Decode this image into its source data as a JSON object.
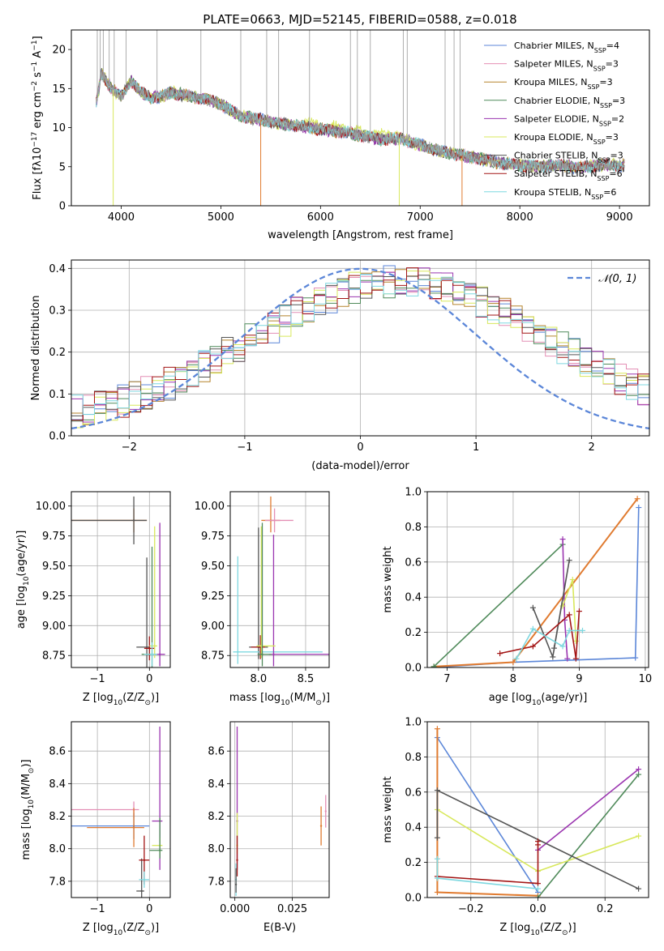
{
  "figure_title": "PLATE=0663, MJD=52145, FIBERID=0588, z=0.018",
  "colors": {
    "Chabrier MILES": "#5b86d8",
    "Salpeter MILES": "#e48fb5",
    "Kroupa MILES": "#b5832c",
    "Chabrier ELODIE": "#4f8a5a",
    "Salpeter ELODIE": "#9b36b0",
    "Kroupa ELODIE": "#d8e85c",
    "Chabrier STELIB": "#555555",
    "Salpeter STELIB": "#a31515",
    "Kroupa STELIB": "#7fd8e0",
    "orange": "#e07b30",
    "data": "#999999"
  },
  "chart_data": [
    {
      "id": "spectrum",
      "type": "line",
      "title": "PLATE=0663, MJD=52145, FIBERID=0588, z=0.018",
      "xlabel": "wavelength [Angstrom, rest frame]",
      "ylabel_parts": [
        "Flux [f",
        "λ",
        "10",
        "−17",
        " erg cm",
        "−2",
        " s",
        "−1",
        " A",
        "−1",
        "]"
      ],
      "xlim": [
        3500,
        9300
      ],
      "ylim": [
        0,
        22.5
      ],
      "xticks": [
        4000,
        5000,
        6000,
        7000,
        8000,
        9000
      ],
      "yticks": [
        0,
        5,
        10,
        15,
        20
      ],
      "legend_position": "top-right",
      "legend": [
        {
          "label": "Chabrier MILES, N",
          "sub": "SSP",
          "suffix": "=4",
          "color": "#5b86d8"
        },
        {
          "label": "Salpeter MILES, N",
          "sub": "SSP",
          "suffix": "=3",
          "color": "#e48fb5"
        },
        {
          "label": "Kroupa MILES, N",
          "sub": "SSP",
          "suffix": "=3",
          "color": "#b5832c"
        },
        {
          "label": "Chabrier ELODIE, N",
          "sub": "SSP",
          "suffix": "=3",
          "color": "#4f8a5a"
        },
        {
          "label": "Salpeter ELODIE, N",
          "sub": "SSP",
          "suffix": "=2",
          "color": "#9b36b0"
        },
        {
          "label": "Kroupa ELODIE, N",
          "sub": "SSP",
          "suffix": "=3",
          "color": "#d8e85c"
        },
        {
          "label": "Chabrier STELIB, N",
          "sub": "SSP",
          "suffix": "=3",
          "color": "#555555"
        },
        {
          "label": "Salpeter STELIB, N",
          "sub": "SSP",
          "suffix": "=6",
          "color": "#a31515"
        },
        {
          "label": "Kroupa STELIB, N",
          "sub": "SSP",
          "suffix": "=6",
          "color": "#7fd8e0"
        }
      ],
      "continuum": [
        [
          3750,
          13
        ],
        [
          3800,
          17
        ],
        [
          3900,
          15
        ],
        [
          4000,
          14
        ],
        [
          4100,
          16
        ],
        [
          4200,
          14.5
        ],
        [
          4300,
          13.8
        ],
        [
          4400,
          14
        ],
        [
          4500,
          14.5
        ],
        [
          4700,
          14
        ],
        [
          4900,
          13.5
        ],
        [
          5000,
          13
        ],
        [
          5200,
          11.5
        ],
        [
          5400,
          11
        ],
        [
          5600,
          10.5
        ],
        [
          5800,
          10.2
        ],
        [
          6000,
          9.8
        ],
        [
          6200,
          9.5
        ],
        [
          6400,
          9
        ],
        [
          6600,
          8.5
        ],
        [
          6800,
          8.6
        ],
        [
          7000,
          7.8
        ],
        [
          7200,
          7
        ],
        [
          7400,
          6.5
        ],
        [
          7600,
          6
        ],
        [
          7800,
          5.5
        ],
        [
          8000,
          5.2
        ],
        [
          8200,
          5
        ],
        [
          8400,
          5.2
        ],
        [
          8600,
          4.9
        ],
        [
          8800,
          5.2
        ],
        [
          9000,
          5.2
        ]
      ],
      "sky_spikes": [
        3760,
        3790,
        3820,
        3880,
        3930,
        4050,
        4360,
        4800,
        5200,
        5460,
        5580,
        5890,
        6300,
        6370,
        6500,
        6830,
        6870,
        7250,
        7340,
        7400
      ]
    },
    {
      "id": "residuals",
      "type": "line",
      "xlabel": "(data-model)/error",
      "ylabel": "Normed distribution",
      "xlim": [
        -2.5,
        2.5
      ],
      "ylim": [
        0,
        0.42
      ],
      "xticks": [
        -2,
        -1,
        0,
        1,
        2
      ],
      "yticks": [
        0.0,
        0.1,
        0.2,
        0.3,
        0.4
      ],
      "legend_position": "top-right",
      "legend": [
        {
          "label": "𝒩(0, 1)",
          "color": "#5b86d8"
        }
      ],
      "gaussian_mu": 0,
      "gaussian_sigma": 1,
      "hist_bins": 50
    },
    {
      "id": "age-vs-Z",
      "type": "scatter",
      "xlabel_parts": [
        "Z [log",
        "10",
        "(Z/Z",
        "⊙",
        ")]"
      ],
      "ylabel_parts": [
        "age  [log",
        "10",
        "(age/yr)]"
      ],
      "xlim": [
        -1.5,
        0.4
      ],
      "ylim": [
        8.65,
        10.12
      ],
      "xticks": [
        -1,
        0
      ],
      "yticks": [
        8.75,
        9.0,
        9.25,
        9.5,
        9.75,
        10.0
      ],
      "points": [
        {
          "x": -0.3,
          "y": 9.88,
          "xerr": [
            1.4,
            0.25
          ],
          "yerr": [
            0.1,
            0.1
          ],
          "color": "#e07b30"
        },
        {
          "x": -0.3,
          "y": 9.88,
          "xerr": [
            1.4,
            0.25
          ],
          "yerr": [
            0.2,
            0.2
          ],
          "color": "#555555"
        },
        {
          "x": -0.05,
          "y": 8.82,
          "xerr": [
            0.2,
            0.05
          ],
          "yerr": [
            0.75,
            0.75
          ],
          "color": "#555555"
        },
        {
          "x": 0.05,
          "y": 8.76,
          "xerr": [
            0.2,
            0.1
          ],
          "yerr": [
            0.9,
            0.9
          ],
          "color": "#4f8a5a"
        },
        {
          "x": 0.0,
          "y": 8.81,
          "xerr": [
            0.1,
            0.1
          ],
          "yerr": [
            0.1,
            0.1
          ],
          "color": "#a31515"
        },
        {
          "x": 0.2,
          "y": 8.76,
          "xerr": [
            0.1,
            0.1
          ],
          "yerr": [
            0.1,
            1.1
          ],
          "color": "#9b36b0"
        },
        {
          "x": 0.1,
          "y": 8.83,
          "xerr": [
            0.1,
            0.05
          ],
          "yerr": [
            0.1,
            1.0
          ],
          "color": "#d8e85c"
        },
        {
          "x": 0.05,
          "y": 8.76,
          "xerr": [
            0.15,
            0.1
          ],
          "yerr": [
            0.1,
            0.1
          ],
          "color": "#7fd8e0"
        }
      ]
    },
    {
      "id": "age-vs-mass",
      "type": "scatter",
      "xlabel_parts": [
        "mass [log",
        "10",
        "(M/M",
        "⊙",
        ")]"
      ],
      "xlim": [
        7.7,
        8.75
      ],
      "ylim": [
        8.65,
        10.12
      ],
      "xticks": [
        8.0,
        8.5
      ],
      "yticks": [
        8.75,
        9.0,
        9.25,
        9.5,
        9.75,
        10.0
      ],
      "points": [
        {
          "x": 8.13,
          "y": 9.88,
          "xerr": [
            0.1,
            0.1
          ],
          "yerr": [
            0.1,
            0.2
          ],
          "color": "#e07b30"
        },
        {
          "x": 8.17,
          "y": 9.88,
          "xerr": [
            0.1,
            0.2
          ],
          "yerr": [
            0.1,
            0.1
          ],
          "color": "#e48fb5"
        },
        {
          "x": 8.0,
          "y": 8.82,
          "xerr": [
            0.1,
            0.1
          ],
          "yerr": [
            0.1,
            1.0
          ],
          "color": "#555555"
        },
        {
          "x": 7.78,
          "y": 8.78,
          "xerr": [
            0.05,
            0.9
          ],
          "yerr": [
            0.1,
            0.8
          ],
          "color": "#7fd8e0"
        },
        {
          "x": 8.02,
          "y": 8.82,
          "xerr": [
            0.1,
            0.05
          ],
          "yerr": [
            0.1,
            0.1
          ],
          "color": "#a31515"
        },
        {
          "x": 8.16,
          "y": 8.76,
          "xerr": [
            0.05,
            0.6
          ],
          "yerr": [
            0.1,
            1.0
          ],
          "color": "#9b36b0"
        },
        {
          "x": 8.03,
          "y": 8.83,
          "xerr": [
            0.05,
            0.15
          ],
          "yerr": [
            0.1,
            1.0
          ],
          "color": "#d8e85c"
        },
        {
          "x": 8.04,
          "y": 8.76,
          "xerr": [
            0.05,
            0.1
          ],
          "yerr": [
            0.1,
            1.1
          ],
          "color": "#4f8a5a"
        }
      ]
    },
    {
      "id": "weight-vs-age",
      "type": "line",
      "xlabel_parts": [
        "age  [log",
        "10",
        "(age/yr)]"
      ],
      "ylabel": "mass weight",
      "xlim": [
        6.7,
        10.05
      ],
      "ylim": [
        0,
        1.0
      ],
      "xticks": [
        7,
        8,
        9,
        10
      ],
      "yticks": [
        0.0,
        0.2,
        0.4,
        0.6,
        0.8,
        1.0
      ],
      "series": [
        {
          "color": "#5b86d8",
          "x": [
            6.8,
            8.0,
            9.85,
            9.9
          ],
          "y": [
            0.0,
            0.03,
            0.055,
            0.91
          ]
        },
        {
          "color": "#e07b30",
          "x": [
            6.8,
            8.0,
            9.88
          ],
          "y": [
            0.005,
            0.03,
            0.96
          ]
        },
        {
          "color": "#4f8a5a",
          "x": [
            6.8,
            8.75
          ],
          "y": [
            0.005,
            0.7
          ]
        },
        {
          "color": "#9b36b0",
          "x": [
            8.75,
            8.78,
            8.82
          ],
          "y": [
            0.73,
            0.27,
            0.05
          ]
        },
        {
          "color": "#d8e85c",
          "x": [
            8.75,
            8.9,
            8.95
          ],
          "y": [
            0.35,
            0.5,
            0.15
          ]
        },
        {
          "color": "#555555",
          "x": [
            8.3,
            8.6,
            8.85,
            8.62
          ],
          "y": [
            0.34,
            0.06,
            0.61,
            0.11
          ]
        },
        {
          "color": "#a31515",
          "x": [
            7.8,
            8.3,
            8.85,
            8.95,
            9.0
          ],
          "y": [
            0.08,
            0.12,
            0.3,
            0.05,
            0.32
          ]
        },
        {
          "color": "#7fd8e0",
          "x": [
            8.05,
            8.3,
            8.75,
            8.85,
            9.05
          ],
          "y": [
            0.05,
            0.22,
            0.12,
            0.21,
            0.21
          ]
        }
      ]
    },
    {
      "id": "mass-vs-Z",
      "type": "scatter",
      "xlabel_parts": [
        "Z [log",
        "10",
        "(Z/Z",
        "⊙",
        ")]"
      ],
      "ylabel_parts": [
        "mass [log",
        "10",
        "(M/M",
        "⊙",
        ")]"
      ],
      "xlim": [
        -1.5,
        0.4
      ],
      "ylim": [
        7.7,
        8.78
      ],
      "xticks": [
        -1,
        0
      ],
      "yticks": [
        7.8,
        8.0,
        8.2,
        8.4,
        8.6
      ],
      "points": [
        {
          "x": -0.3,
          "y": 8.24,
          "xerr": [
            1.4,
            0.1
          ],
          "yerr": [
            0.05,
            0.05
          ],
          "color": "#e48fb5"
        },
        {
          "x": -0.3,
          "y": 8.14,
          "xerr": [
            1.4,
            0.3
          ],
          "yerr": [
            0.08,
            0.08
          ],
          "color": "#5b86d8"
        },
        {
          "x": -0.3,
          "y": 8.13,
          "xerr": [
            0.9,
            0.2
          ],
          "yerr": [
            0.12,
            0.12
          ],
          "color": "#e07b30"
        },
        {
          "x": -0.15,
          "y": 7.74,
          "xerr": [
            0.1,
            0.05
          ],
          "yerr": [
            0.2,
            0.2
          ],
          "color": "#555555"
        },
        {
          "x": -0.1,
          "y": 7.93,
          "xerr": [
            0.1,
            0.1
          ],
          "yerr": [
            0.15,
            0.15
          ],
          "color": "#a31515"
        },
        {
          "x": -0.1,
          "y": 7.81,
          "xerr": [
            0.1,
            0.1
          ],
          "yerr": [
            0.05,
            0.05
          ],
          "color": "#7fd8e0"
        },
        {
          "x": 0.2,
          "y": 8.17,
          "xerr": [
            0.15,
            0.05
          ],
          "yerr": [
            0.3,
            0.58
          ],
          "color": "#9b36b0"
        },
        {
          "x": 0.2,
          "y": 8.02,
          "xerr": [
            0.15,
            0.05
          ],
          "yerr": [
            0.05,
            0.05
          ],
          "color": "#d8e85c"
        },
        {
          "x": 0.2,
          "y": 7.99,
          "xerr": [
            0.2,
            0.05
          ],
          "yerr": [
            0.05,
            0.2
          ],
          "color": "#4f8a5a"
        }
      ]
    },
    {
      "id": "mass-vs-ebv",
      "type": "scatter",
      "xlabel": "E(B-V)",
      "xlim": [
        -0.002,
        0.041
      ],
      "ylim": [
        7.7,
        8.78
      ],
      "xticks": [
        0.0,
        0.025
      ],
      "xtick_labels": [
        "0.000",
        "0.025"
      ],
      "yticks": [
        7.8,
        8.0,
        8.2,
        8.4,
        8.6
      ],
      "points": [
        {
          "x": 0.001,
          "y": 8.17,
          "yerr": [
            0.3,
            0.58
          ],
          "color": "#9b36b0"
        },
        {
          "x": 0.001,
          "y": 8.02,
          "yerr": [
            0.05,
            0.2
          ],
          "color": "#d8e85c"
        },
        {
          "x": 0.001,
          "y": 7.93,
          "yerr": [
            0.1,
            0.15
          ],
          "color": "#a31515"
        },
        {
          "x": 0.0005,
          "y": 7.81,
          "yerr": [
            0.1,
            0.1
          ],
          "color": "#7fd8e0"
        },
        {
          "x": 0.0005,
          "y": 7.78,
          "yerr": [
            0.05,
            0.1
          ],
          "color": "#555555"
        },
        {
          "x": 0.0375,
          "y": 8.14,
          "yerr": [
            0.12,
            0.12
          ],
          "color": "#e07b30"
        },
        {
          "x": 0.0395,
          "y": 8.23,
          "yerr": [
            0.1,
            0.1
          ],
          "color": "#e48fb5"
        }
      ]
    },
    {
      "id": "weight-vs-Z",
      "type": "line",
      "xlabel_parts": [
        "Z [log",
        "10",
        "(Z/Z",
        "⊙",
        ")]"
      ],
      "ylabel": "mass weight",
      "xlim": [
        -0.33,
        0.33
      ],
      "ylim": [
        0,
        1.0
      ],
      "xticks": [
        -0.2,
        0.0,
        0.2
      ],
      "xtick_labels": [
        "−0.2",
        "0.0",
        "0.2"
      ],
      "yticks": [
        0.0,
        0.2,
        0.4,
        0.6,
        0.8,
        1.0
      ],
      "series": [
        {
          "color": "#5b86d8",
          "x": [
            -0.3,
            0.0
          ],
          "y": [
            0.91,
            0.03
          ]
        },
        {
          "color": "#e07b30",
          "x": [
            -0.3,
            -0.3,
            0.0
          ],
          "y": [
            0.96,
            0.03,
            0.01
          ]
        },
        {
          "color": "#4f8a5a",
          "x": [
            0.0,
            0.3
          ],
          "y": [
            0.0,
            0.7
          ]
        },
        {
          "color": "#9b36b0",
          "x": [
            0.0,
            0.3
          ],
          "y": [
            0.27,
            0.73
          ]
        },
        {
          "color": "#d8e85c",
          "x": [
            -0.3,
            0.0,
            0.3
          ],
          "y": [
            0.5,
            0.15,
            0.35
          ]
        },
        {
          "color": "#555555",
          "x": [
            -0.3,
            -0.3,
            0.3
          ],
          "y": [
            0.34,
            0.61,
            0.05
          ]
        },
        {
          "color": "#a31515",
          "x": [
            -0.3,
            0.0,
            0.0,
            0.0
          ],
          "y": [
            0.12,
            0.08,
            0.3,
            0.32
          ]
        },
        {
          "color": "#7fd8e0",
          "x": [
            -0.3,
            -0.3,
            0.0
          ],
          "y": [
            0.22,
            0.11,
            0.05
          ]
        }
      ]
    }
  ]
}
